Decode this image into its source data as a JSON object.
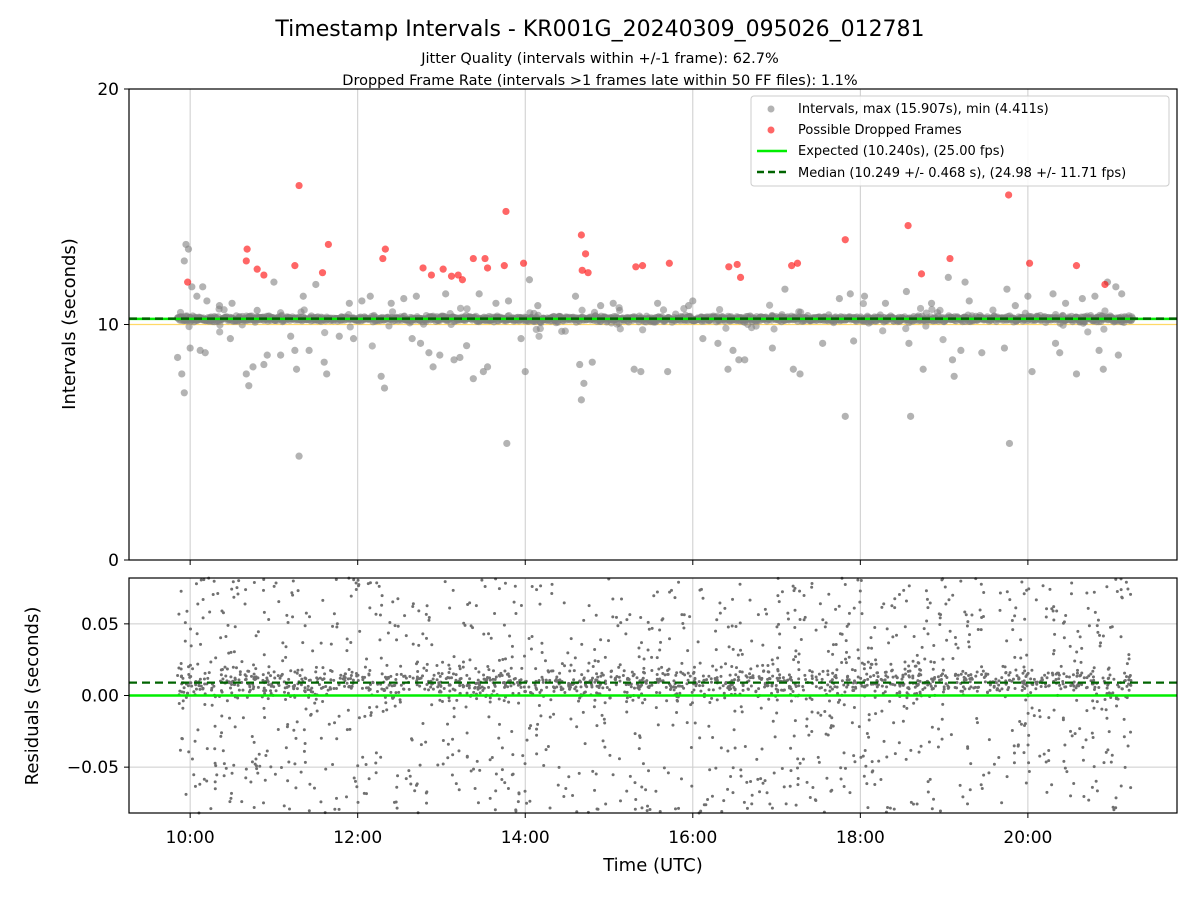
{
  "chart_data": [
    {
      "type": "scatter",
      "title": "Timestamp Intervals - KR001G_20240309_095026_012781",
      "subtitle_lines": [
        "Jitter Quality (intervals within +/-1 frame): 62.7%",
        "Dropped Frame Rate (intervals >1 frames late within 50 FF files): 1.1%"
      ],
      "xlabel": "",
      "ylabel": "Intervals (seconds)",
      "ylim": [
        0,
        20
      ],
      "xlim_hours": [
        9.27,
        21.78
      ],
      "y_ticks": [
        0,
        10,
        20
      ],
      "y_tick_labels": [
        "0",
        "10",
        "20"
      ],
      "grid": "vertical",
      "legend_position": "top-right",
      "legend": [
        "Intervals, max (15.907s), min (4.411s)",
        "Possible Dropped Frames",
        "Expected (10.240s), (25.00 fps)",
        "Median (10.249 +/- 0.468 s), (24.98 +/- 11.71 fps)"
      ],
      "expected_interval": 10.24,
      "median_interval": 10.249,
      "x_range_hours": [
        9.85,
        21.25
      ],
      "colors": {
        "intervals": "#808080",
        "dropped": "#ff0000",
        "expected": "#00ee00",
        "median": "#006400",
        "band": "#ffd966"
      },
      "dropped_frames": [
        [
          9.97,
          11.8
        ],
        [
          10.68,
          13.2
        ],
        [
          10.67,
          12.7
        ],
        [
          10.8,
          12.35
        ],
        [
          10.88,
          12.1
        ],
        [
          11.25,
          12.5
        ],
        [
          11.3,
          15.9
        ],
        [
          11.58,
          12.2
        ],
        [
          11.65,
          13.4
        ],
        [
          12.3,
          12.8
        ],
        [
          12.33,
          13.2
        ],
        [
          12.78,
          12.4
        ],
        [
          12.88,
          12.1
        ],
        [
          13.02,
          12.35
        ],
        [
          13.12,
          12.05
        ],
        [
          13.2,
          12.1
        ],
        [
          13.25,
          11.9
        ],
        [
          13.38,
          12.8
        ],
        [
          13.52,
          12.8
        ],
        [
          13.55,
          12.4
        ],
        [
          13.75,
          12.5
        ],
        [
          13.77,
          14.8
        ],
        [
          13.98,
          12.6
        ],
        [
          14.67,
          13.8
        ],
        [
          14.68,
          12.3
        ],
        [
          14.72,
          13.0
        ],
        [
          14.75,
          12.2
        ],
        [
          15.32,
          12.45
        ],
        [
          15.4,
          12.5
        ],
        [
          15.72,
          12.6
        ],
        [
          16.43,
          12.45
        ],
        [
          16.53,
          12.55
        ],
        [
          16.57,
          12.0
        ],
        [
          17.18,
          12.5
        ],
        [
          17.25,
          12.6
        ],
        [
          17.82,
          13.6
        ],
        [
          18.57,
          14.2
        ],
        [
          18.73,
          12.15
        ],
        [
          19.07,
          12.8
        ],
        [
          19.77,
          15.5
        ],
        [
          20.02,
          12.6
        ],
        [
          20.58,
          12.5
        ],
        [
          20.92,
          11.7
        ]
      ],
      "interval_outliers": [
        [
          9.85,
          8.6
        ],
        [
          9.9,
          7.9
        ],
        [
          9.93,
          7.1
        ],
        [
          9.93,
          12.7
        ],
        [
          9.95,
          13.4
        ],
        [
          9.98,
          13.2
        ],
        [
          10.0,
          9.0
        ],
        [
          10.02,
          11.6
        ],
        [
          10.08,
          11.2
        ],
        [
          10.12,
          8.9
        ],
        [
          10.15,
          11.6
        ],
        [
          10.18,
          8.8
        ],
        [
          10.2,
          11.0
        ],
        [
          10.35,
          10.8
        ],
        [
          10.48,
          9.4
        ],
        [
          10.5,
          10.9
        ],
        [
          10.67,
          7.9
        ],
        [
          10.7,
          7.4
        ],
        [
          10.75,
          8.2
        ],
        [
          10.8,
          10.6
        ],
        [
          10.88,
          8.3
        ],
        [
          10.92,
          8.7
        ],
        [
          11.0,
          11.8
        ],
        [
          11.08,
          8.7
        ],
        [
          11.2,
          9.5
        ],
        [
          11.25,
          8.9
        ],
        [
          11.27,
          8.1
        ],
        [
          11.3,
          4.41
        ],
        [
          11.35,
          11.2
        ],
        [
          11.42,
          8.9
        ],
        [
          11.5,
          11.7
        ],
        [
          11.6,
          8.4
        ],
        [
          11.63,
          7.9
        ],
        [
          11.78,
          9.5
        ],
        [
          11.9,
          10.9
        ],
        [
          11.95,
          9.4
        ],
        [
          12.05,
          11.0
        ],
        [
          12.15,
          11.2
        ],
        [
          12.28,
          7.8
        ],
        [
          12.32,
          7.3
        ],
        [
          12.4,
          10.9
        ],
        [
          12.55,
          11.1
        ],
        [
          12.65,
          9.4
        ],
        [
          12.7,
          11.2
        ],
        [
          12.75,
          9.2
        ],
        [
          12.85,
          8.8
        ],
        [
          12.9,
          8.2
        ],
        [
          12.98,
          8.7
        ],
        [
          13.05,
          11.3
        ],
        [
          13.15,
          8.5
        ],
        [
          13.22,
          8.6
        ],
        [
          13.3,
          9.1
        ],
        [
          13.38,
          7.7
        ],
        [
          13.45,
          11.3
        ],
        [
          13.5,
          8.0
        ],
        [
          13.55,
          8.2
        ],
        [
          13.65,
          10.9
        ],
        [
          13.78,
          4.95
        ],
        [
          13.8,
          11.0
        ],
        [
          13.95,
          9.4
        ],
        [
          14.0,
          8.0
        ],
        [
          14.05,
          11.9
        ],
        [
          14.15,
          10.8
        ],
        [
          14.6,
          11.2
        ],
        [
          14.65,
          8.3
        ],
        [
          14.67,
          6.8
        ],
        [
          14.7,
          7.5
        ],
        [
          14.8,
          8.4
        ],
        [
          14.9,
          10.8
        ],
        [
          15.05,
          10.9
        ],
        [
          15.3,
          8.1
        ],
        [
          15.38,
          8.0
        ],
        [
          15.58,
          10.9
        ],
        [
          15.7,
          8.0
        ],
        [
          15.95,
          10.8
        ],
        [
          16.0,
          11.0
        ],
        [
          16.12,
          9.4
        ],
        [
          16.3,
          9.2
        ],
        [
          16.42,
          8.1
        ],
        [
          16.48,
          8.9
        ],
        [
          16.55,
          8.5
        ],
        [
          16.62,
          8.5
        ],
        [
          16.95,
          9.0
        ],
        [
          17.1,
          11.5
        ],
        [
          17.2,
          8.1
        ],
        [
          17.28,
          7.9
        ],
        [
          17.55,
          9.2
        ],
        [
          17.75,
          11.1
        ],
        [
          17.82,
          6.1
        ],
        [
          17.88,
          11.3
        ],
        [
          17.92,
          9.3
        ],
        [
          18.05,
          11.2
        ],
        [
          18.3,
          10.9
        ],
        [
          18.55,
          11.4
        ],
        [
          18.58,
          9.2
        ],
        [
          18.6,
          6.1
        ],
        [
          18.75,
          8.1
        ],
        [
          18.85,
          10.9
        ],
        [
          19.05,
          12.0
        ],
        [
          19.1,
          8.5
        ],
        [
          19.12,
          7.8
        ],
        [
          19.2,
          8.9
        ],
        [
          19.25,
          11.8
        ],
        [
          19.3,
          11.0
        ],
        [
          19.45,
          8.8
        ],
        [
          19.72,
          9.0
        ],
        [
          19.75,
          11.5
        ],
        [
          19.78,
          4.95
        ],
        [
          19.85,
          10.8
        ],
        [
          20.0,
          11.2
        ],
        [
          20.05,
          8.0
        ],
        [
          20.3,
          11.3
        ],
        [
          20.33,
          9.2
        ],
        [
          20.38,
          8.8
        ],
        [
          20.45,
          10.9
        ],
        [
          20.58,
          7.9
        ],
        [
          20.65,
          11.1
        ],
        [
          20.8,
          11.2
        ],
        [
          20.85,
          8.9
        ],
        [
          20.9,
          8.1
        ],
        [
          20.95,
          11.8
        ],
        [
          21.05,
          11.6
        ],
        [
          21.08,
          8.7
        ],
        [
          21.12,
          11.3
        ]
      ]
    },
    {
      "type": "scatter",
      "xlabel": "Time (UTC)",
      "ylabel": "Residuals (seconds)",
      "ylim": [
        -0.082,
        0.082
      ],
      "xlim_hours": [
        9.27,
        21.78
      ],
      "y_ticks": [
        0.05,
        0.0,
        -0.05
      ],
      "y_tick_labels": [
        "0.05",
        "0.00",
        "−0.05"
      ],
      "x_ticks_hours": [
        10,
        12,
        14,
        16,
        18,
        20
      ],
      "x_tick_labels": [
        "10:00",
        "12:00",
        "14:00",
        "16:00",
        "18:00",
        "20:00"
      ],
      "grid": "both",
      "expected_residual": 0.0,
      "median_residual": 0.009,
      "x_range_hours": [
        9.85,
        21.25
      ],
      "point_color": "#707070"
    }
  ]
}
